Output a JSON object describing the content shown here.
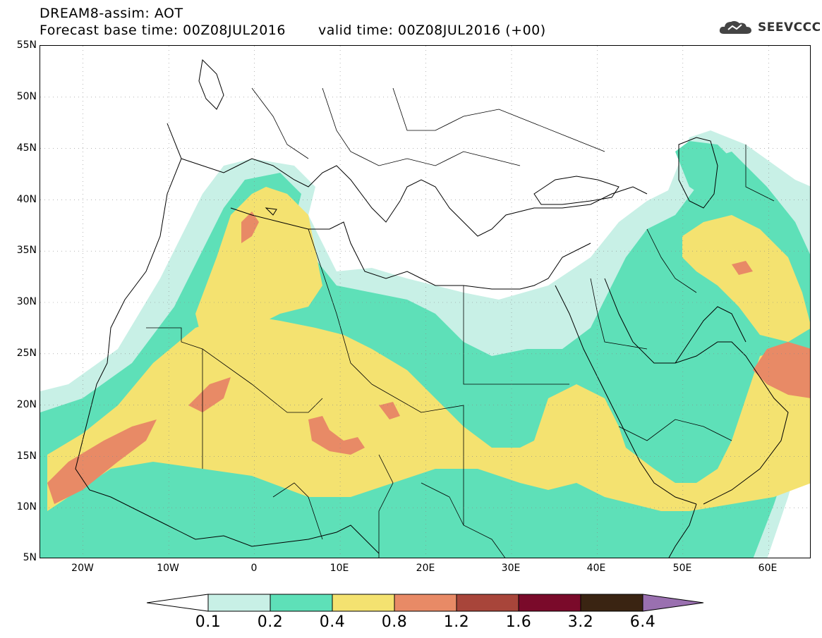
{
  "header": {
    "line1": "DREAM8-assim: AOT",
    "base_time_label": "Forecast base time: 00Z08JUL2016",
    "valid_time_label": "valid time: 00Z08JUL2016 (+00)",
    "brand": "SEEVCCC",
    "brand_icon": "cloud-icon"
  },
  "axes": {
    "y_ticks": [
      "55N",
      "50N",
      "45N",
      "40N",
      "35N",
      "30N",
      "25N",
      "20N",
      "15N",
      "10N",
      "5N"
    ],
    "x_ticks": [
      "20W",
      "10W",
      "0",
      "10E",
      "20E",
      "30E",
      "40E",
      "50E",
      "60E"
    ]
  },
  "colorbar": {
    "labels": [
      "0.1",
      "0.2",
      "0.4",
      "0.8",
      "1.2",
      "1.6",
      "3.2",
      "6.4"
    ],
    "colors": [
      "#ffffff",
      "#c8f0e6",
      "#5ee0b8",
      "#f4e270",
      "#e88a66",
      "#a8453a",
      "#7a0a2a",
      "#3a2412",
      "#9a70b0"
    ]
  },
  "map_extent": {
    "lon": [
      -25,
      65
    ],
    "lat": [
      5,
      55
    ]
  }
}
